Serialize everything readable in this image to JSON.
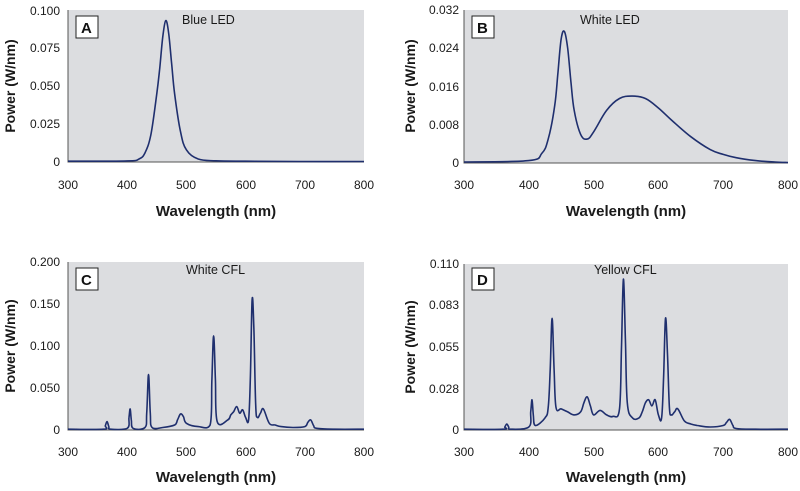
{
  "colors": {
    "plot_bg": "#dcdde0",
    "line": "#1f2f6e",
    "axis": "#555555"
  },
  "chart_data": [
    {
      "type": "line",
      "panel": "A",
      "title": "Blue LED",
      "xlabel": "Wavelength (nm)",
      "ylabel": "Power (W/nm)",
      "xlim": [
        300,
        800
      ],
      "ylim": [
        0,
        0.1
      ],
      "xticks": [
        "300",
        "400",
        "500",
        "600",
        "700",
        "800"
      ],
      "yticks": [
        "0",
        "0.025",
        "0.050",
        "0.075",
        "0.100"
      ],
      "series": [
        {
          "name": "Blue LED",
          "x": [
            300,
            400,
            420,
            430,
            440,
            450,
            455,
            460,
            465,
            470,
            475,
            480,
            490,
            500,
            520,
            550,
            600,
            700,
            800
          ],
          "y": [
            0.0005,
            0.0007,
            0.002,
            0.006,
            0.018,
            0.045,
            0.062,
            0.082,
            0.093,
            0.085,
            0.065,
            0.045,
            0.02,
            0.008,
            0.002,
            0.0008,
            0.0005,
            0.0003,
            0.0003
          ]
        }
      ]
    },
    {
      "type": "line",
      "panel": "B",
      "title": "White LED",
      "xlabel": "Wavelength (nm)",
      "ylabel": "Power (W/nm)",
      "xlim": [
        300,
        800
      ],
      "ylim": [
        0,
        0.032
      ],
      "xticks": [
        "300",
        "400",
        "500",
        "600",
        "700",
        "800"
      ],
      "yticks": [
        "0",
        "0.008",
        "0.016",
        "0.024",
        "0.032"
      ],
      "series": [
        {
          "name": "White LED",
          "x": [
            300,
            400,
            420,
            430,
            440,
            445,
            450,
            455,
            460,
            465,
            470,
            480,
            490,
            500,
            520,
            540,
            560,
            580,
            600,
            620,
            650,
            680,
            700,
            720,
            750,
            780,
            800
          ],
          "y": [
            0.0002,
            0.0005,
            0.002,
            0.005,
            0.012,
            0.019,
            0.026,
            0.0275,
            0.024,
            0.017,
            0.011,
            0.006,
            0.005,
            0.0065,
            0.011,
            0.0135,
            0.014,
            0.0135,
            0.0115,
            0.009,
            0.0055,
            0.0028,
            0.0018,
            0.0011,
            0.0005,
            0.0002,
            0.0001
          ]
        }
      ]
    },
    {
      "type": "line",
      "panel": "C",
      "title": "White CFL",
      "xlabel": "Wavelength (nm)",
      "ylabel": "Power (W/nm)",
      "xlim": [
        300,
        800
      ],
      "ylim": [
        0,
        0.2
      ],
      "xticks": [
        "300",
        "400",
        "500",
        "600",
        "700",
        "800"
      ],
      "yticks": [
        "0",
        "0.050",
        "0.100",
        "0.150",
        "0.200"
      ],
      "series": [
        {
          "name": "White CFL",
          "x": [
            300,
            360,
            363,
            366,
            369,
            372,
            400,
            403,
            405,
            407,
            410,
            430,
            433,
            436,
            439,
            442,
            460,
            480,
            485,
            490,
            495,
            500,
            520,
            540,
            543,
            546,
            549,
            552,
            570,
            575,
            580,
            585,
            590,
            595,
            600,
            605,
            608,
            611,
            614,
            617,
            620,
            625,
            630,
            640,
            650,
            660,
            680,
            700,
            705,
            710,
            715,
            720,
            750,
            800
          ],
          "y": [
            0.001,
            0.001,
            0.005,
            0.01,
            0.004,
            0.001,
            0.002,
            0.015,
            0.025,
            0.012,
            0.002,
            0.003,
            0.02,
            0.066,
            0.02,
            0.003,
            0.003,
            0.006,
            0.012,
            0.019,
            0.016,
            0.008,
            0.004,
            0.006,
            0.06,
            0.112,
            0.06,
            0.01,
            0.012,
            0.018,
            0.022,
            0.028,
            0.02,
            0.024,
            0.015,
            0.012,
            0.06,
            0.155,
            0.12,
            0.03,
            0.015,
            0.02,
            0.025,
            0.008,
            0.006,
            0.004,
            0.003,
            0.004,
            0.009,
            0.012,
            0.005,
            0.002,
            0.001,
            0.001
          ]
        }
      ]
    },
    {
      "type": "line",
      "panel": "D",
      "title": "Yellow CFL",
      "xlabel": "Wavelength (nm)",
      "ylabel": "Power (W/nm)",
      "xlim": [
        300,
        800
      ],
      "ylim": [
        0,
        0.11
      ],
      "xticks": [
        "300",
        "400",
        "500",
        "600",
        "700",
        "800"
      ],
      "yticks": [
        "0",
        "0.028",
        "0.055",
        "0.083",
        "0.110"
      ],
      "series": [
        {
          "name": "Yellow CFL",
          "x": [
            300,
            360,
            363,
            366,
            369,
            372,
            400,
            403,
            405,
            407,
            410,
            425,
            430,
            433,
            436,
            439,
            442,
            450,
            460,
            470,
            480,
            485,
            490,
            495,
            500,
            510,
            520,
            530,
            540,
            543,
            546,
            549,
            552,
            560,
            570,
            575,
            580,
            585,
            590,
            595,
            600,
            605,
            608,
            611,
            614,
            617,
            620,
            625,
            630,
            640,
            650,
            660,
            680,
            700,
            705,
            710,
            715,
            720,
            750,
            800
          ],
          "y": [
            0.0005,
            0.0005,
            0.002,
            0.004,
            0.002,
            0.0005,
            0.002,
            0.012,
            0.02,
            0.01,
            0.003,
            0.008,
            0.015,
            0.04,
            0.074,
            0.04,
            0.015,
            0.014,
            0.012,
            0.01,
            0.012,
            0.018,
            0.022,
            0.016,
            0.01,
            0.013,
            0.01,
            0.009,
            0.014,
            0.055,
            0.1,
            0.06,
            0.018,
            0.008,
            0.008,
            0.012,
            0.018,
            0.02,
            0.016,
            0.02,
            0.01,
            0.008,
            0.035,
            0.074,
            0.05,
            0.015,
            0.01,
            0.012,
            0.014,
            0.006,
            0.004,
            0.003,
            0.002,
            0.003,
            0.005,
            0.007,
            0.003,
            0.001,
            0.0005,
            0.0005
          ]
        }
      ]
    }
  ]
}
